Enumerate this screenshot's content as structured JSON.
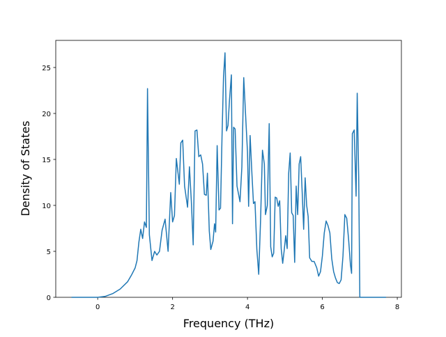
{
  "chart_data": {
    "type": "line",
    "x_label": "Frequency (THz)",
    "y_label": "Density of States",
    "x": [
      -0.7,
      0,
      0.2,
      0.4,
      0.6,
      0.8,
      0.9,
      1.0,
      1.05,
      1.1,
      1.15,
      1.2,
      1.25,
      1.3,
      1.33,
      1.38,
      1.45,
      1.52,
      1.58,
      1.65,
      1.72,
      1.8,
      1.88,
      1.95,
      2.0,
      2.05,
      2.1,
      2.18,
      2.22,
      2.27,
      2.32,
      2.4,
      2.45,
      2.5,
      2.55,
      2.6,
      2.65,
      2.7,
      2.75,
      2.8,
      2.85,
      2.9,
      2.93,
      2.98,
      3.02,
      3.08,
      3.12,
      3.15,
      3.19,
      3.24,
      3.28,
      3.32,
      3.36,
      3.4,
      3.44,
      3.48,
      3.52,
      3.57,
      3.6,
      3.63,
      3.67,
      3.72,
      3.8,
      3.85,
      3.9,
      3.95,
      4.0,
      4.03,
      4.07,
      4.12,
      4.16,
      4.2,
      4.25,
      4.3,
      4.35,
      4.4,
      4.45,
      4.48,
      4.53,
      4.58,
      4.62,
      4.66,
      4.7,
      4.74,
      4.78,
      4.82,
      4.86,
      4.9,
      4.94,
      4.98,
      5.02,
      5.06,
      5.1,
      5.14,
      5.18,
      5.22,
      5.26,
      5.3,
      5.34,
      5.38,
      5.42,
      5.46,
      5.5,
      5.54,
      5.58,
      5.62,
      5.66,
      5.72,
      5.78,
      5.85,
      5.9,
      5.95,
      6.0,
      6.05,
      6.1,
      6.15,
      6.2,
      6.25,
      6.3,
      6.35,
      6.4,
      6.45,
      6.5,
      6.55,
      6.6,
      6.65,
      6.7,
      6.75,
      6.78,
      6.8,
      6.85,
      6.9,
      6.93,
      6.97,
      7.0,
      7.3,
      7.7
    ],
    "series": [
      {
        "color": "#1f77b4",
        "values": [
          0,
          0,
          0.1,
          0.4,
          0.9,
          1.7,
          2.4,
          3.2,
          4,
          6,
          7.4,
          6.4,
          8.2,
          7.6,
          22.7,
          6.8,
          4.0,
          5.0,
          4.6,
          5.0,
          7.3,
          8.5,
          5.0,
          11.4,
          8.2,
          8.9,
          15.1,
          12.3,
          16.8,
          17.1,
          12.1,
          9.8,
          14.2,
          10.5,
          5.7,
          18.1,
          18.2,
          15.3,
          15.5,
          14.5,
          11.2,
          11.1,
          13.5,
          7.2,
          5.2,
          6.1,
          8.0,
          7.1,
          16.5,
          9.5,
          9.7,
          17.5,
          24.0,
          26.6,
          18.1,
          18.7,
          21.5,
          24.2,
          8.0,
          18.5,
          18.3,
          12.1,
          10.4,
          14.2,
          23.9,
          19.8,
          15.8,
          9.9,
          17.6,
          13.3,
          10.2,
          10.4,
          5.2,
          2.5,
          8.5,
          16.0,
          14.5,
          9.0,
          10.0,
          18.9,
          5.5,
          4.4,
          4.8,
          10.9,
          10.8,
          9.9,
          10.5,
          5.3,
          3.7,
          5.1,
          6.7,
          5.3,
          13.5,
          15.7,
          9.2,
          8.9,
          3.8,
          12.1,
          9.0,
          14.5,
          15.3,
          11.5,
          7.4,
          13.0,
          10.0,
          8.8,
          4.3,
          3.9,
          3.9,
          3.2,
          2.3,
          2.8,
          4.5,
          7.0,
          8.3,
          7.8,
          7.0,
          4.2,
          2.8,
          2.1,
          1.6,
          1.5,
          1.9,
          4.5,
          9.0,
          8.6,
          6.3,
          3.5,
          2.6,
          17.8,
          18.2,
          11.0,
          22.2,
          13.0,
          0,
          0,
          0
        ]
      }
    ],
    "xlim": [
      -1.12,
      8.11
    ],
    "ylim": [
      0,
      27.95
    ],
    "xticks": [
      0,
      2,
      4,
      6,
      8
    ],
    "yticks": [
      0,
      5,
      10,
      15,
      20,
      25
    ]
  }
}
